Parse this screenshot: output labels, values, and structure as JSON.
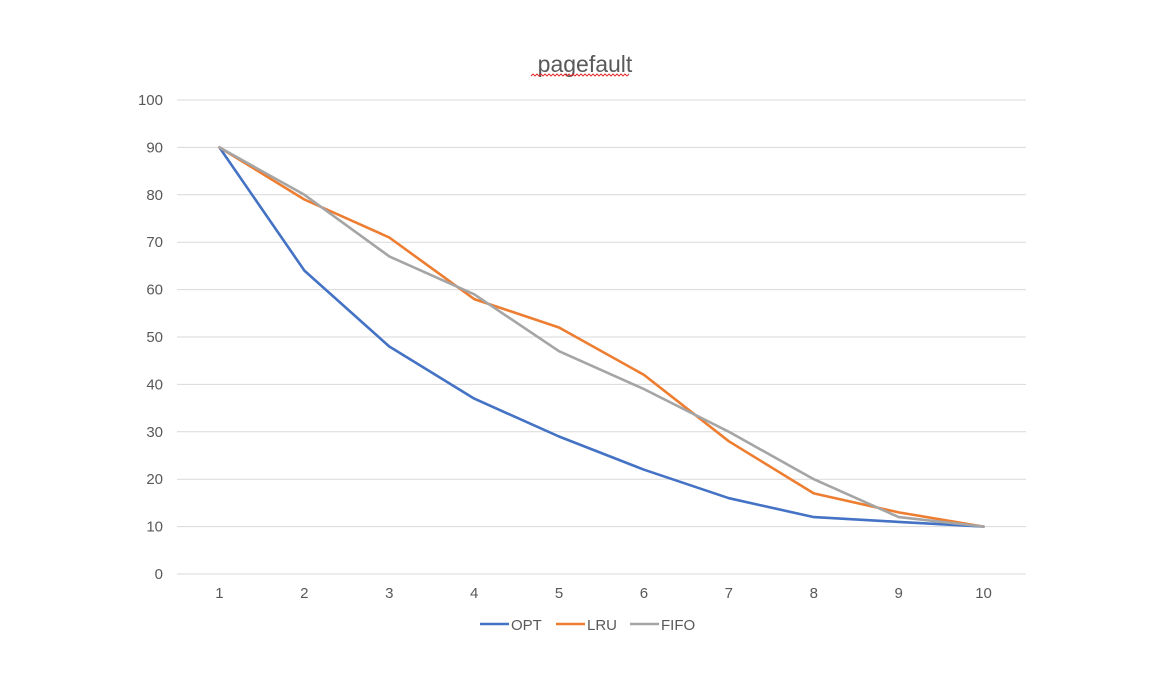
{
  "chart_data": {
    "type": "line",
    "title": "pagefault",
    "xlabel": "",
    "ylabel": "",
    "x": [
      1,
      2,
      3,
      4,
      5,
      6,
      7,
      8,
      9,
      10
    ],
    "ylim": [
      0,
      100
    ],
    "yticks": [
      0,
      10,
      20,
      30,
      40,
      50,
      60,
      70,
      80,
      90,
      100
    ],
    "grid": "horizontal",
    "legend": "bottom",
    "series": [
      {
        "name": "OPT",
        "color": "#4472c4",
        "values": [
          90,
          64,
          48,
          37,
          29,
          22,
          16,
          12,
          11,
          10
        ]
      },
      {
        "name": "LRU",
        "color": "#ed7d31",
        "values": [
          90,
          79,
          71,
          58,
          52,
          42,
          28,
          17,
          13,
          10
        ]
      },
      {
        "name": "FIFO",
        "color": "#a5a5a5",
        "values": [
          90,
          80,
          67,
          59,
          47,
          39,
          30,
          20,
          12,
          10
        ]
      }
    ]
  }
}
